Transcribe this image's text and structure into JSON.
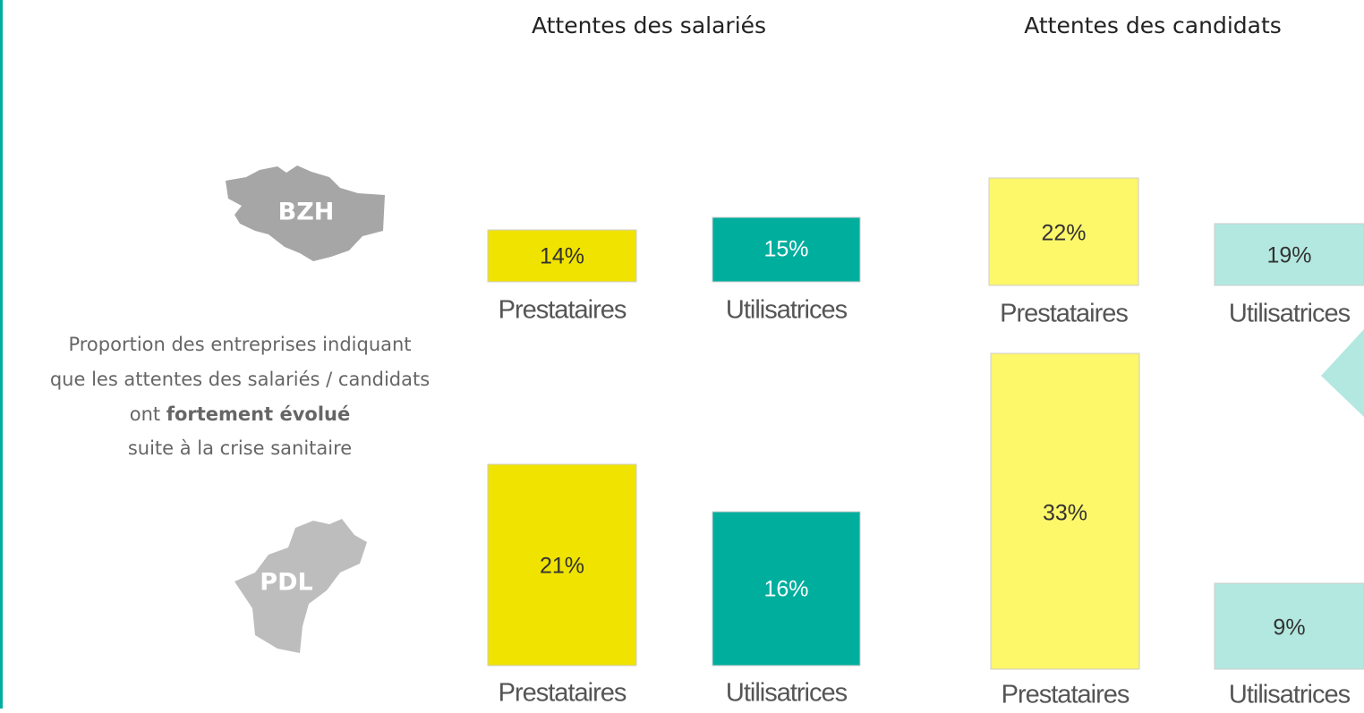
{
  "headers": [
    "Attentes des salariés",
    "Attentes des candidats"
  ],
  "regions": [
    "BZH",
    "PDL"
  ],
  "description": {
    "lines": [
      "Proportion des entreprises indiquant",
      "que les attentes des salariés / candidats"
    ],
    "line3_prefix": "ont ",
    "line3_bold": "fortement évolué",
    "line4": "suite à la crise sanitaire"
  },
  "bars": [
    {
      "value": "14%",
      "label": "Prestataires"
    },
    {
      "value": "15%",
      "label": "Utilisatrices"
    },
    {
      "value": "22%",
      "label": "Prestataires"
    },
    {
      "value": "19%",
      "label": "Utilisatrices"
    },
    {
      "value": "21%",
      "label": "Prestataires"
    },
    {
      "value": "16%",
      "label": "Utilisatrices"
    },
    {
      "value": "33%",
      "label": "Prestataires"
    },
    {
      "value": "9%",
      "label": "Utilisatrices"
    }
  ]
}
